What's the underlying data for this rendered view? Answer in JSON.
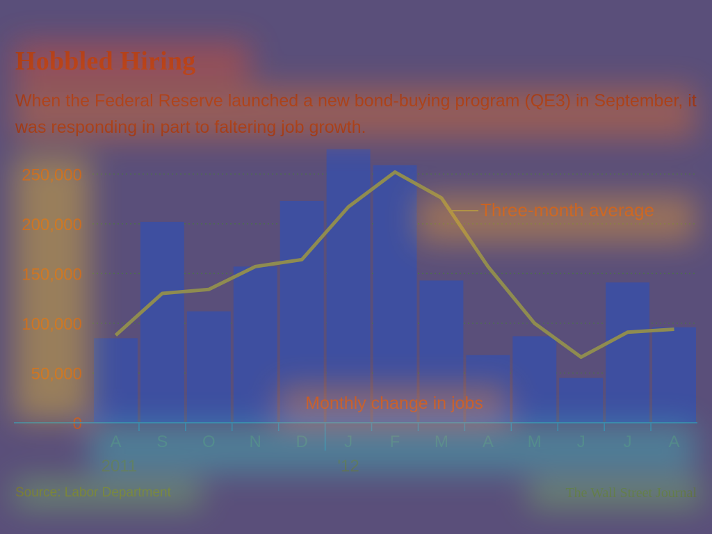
{
  "header": {
    "title": "Hobbled Hiring",
    "subtitle": "When the Federal Reserve launched a new bond-buying program (QE3) in September, it was responding in part to faltering job growth."
  },
  "footer": {
    "source": "Source: Labor Department",
    "publisher": "The Wall Street Journal"
  },
  "colors": {
    "bar": "#3e4fa0",
    "average_line": "#8f8c50",
    "label_text": "#b9471b",
    "axis": "#3a7fa8",
    "gridline": "#4d6d4d"
  },
  "chart_data": {
    "type": "bar",
    "categories": [
      "A",
      "S",
      "O",
      "N",
      "D",
      "J",
      "F",
      "M",
      "A",
      "M",
      "J",
      "J",
      "A"
    ],
    "year_labels": [
      {
        "category_index": 0,
        "label": "2011"
      },
      {
        "category_index": 5,
        "label": "'12"
      }
    ],
    "series": [
      {
        "name": "Monthly change in jobs",
        "type": "bar",
        "values": [
          85000,
          202000,
          112000,
          157000,
          223000,
          275000,
          259000,
          143000,
          68000,
          87000,
          45000,
          141000,
          96000
        ]
      },
      {
        "name": "Three-month average",
        "type": "line",
        "values": [
          88000,
          130000,
          134000,
          157000,
          164000,
          217000,
          252000,
          226000,
          157000,
          100000,
          66000,
          91000,
          94000
        ]
      }
    ],
    "yticks": [
      0,
      50000,
      100000,
      150000,
      200000,
      250000
    ],
    "ytick_labels": [
      "0",
      "50,000",
      "100,000",
      "150,000",
      "200,000",
      "250,000"
    ],
    "ylim": [
      0,
      260000
    ],
    "grid": true
  }
}
